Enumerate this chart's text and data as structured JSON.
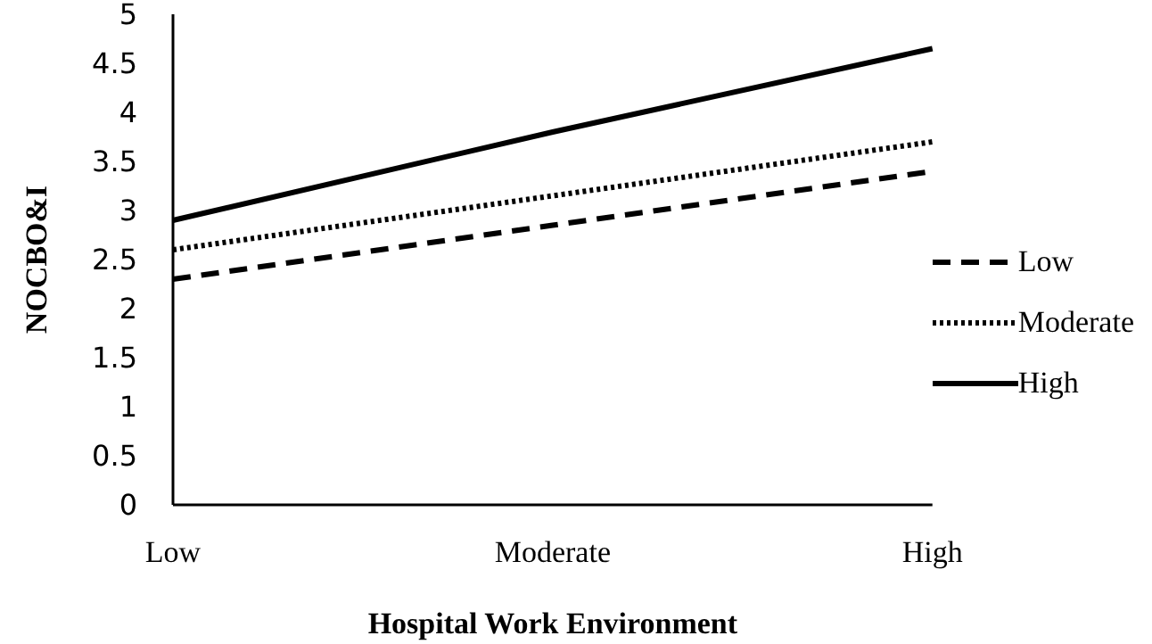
{
  "chart_data": {
    "type": "line",
    "xlabel": "Hospital Work Environment",
    "ylabel": "NOCBO&I",
    "categories": [
      "Low",
      "Moderate",
      "High"
    ],
    "ylim": [
      0,
      5
    ],
    "yticks": [
      0,
      0.5,
      1,
      1.5,
      2,
      2.5,
      3,
      3.5,
      4,
      4.5,
      5
    ],
    "grid": false,
    "legend": "right",
    "marker": "none",
    "series": [
      {
        "name": "Low",
        "color": "#000000",
        "line_style": "dashed",
        "values": [
          2.3,
          2.85,
          3.4
        ]
      },
      {
        "name": "Moderate",
        "color": "#000000",
        "line_style": "dotted",
        "values": [
          2.6,
          3.15,
          3.7
        ]
      },
      {
        "name": "High",
        "color": "#000000",
        "line_style": "solid",
        "values": [
          2.9,
          3.8,
          4.65
        ]
      }
    ]
  }
}
